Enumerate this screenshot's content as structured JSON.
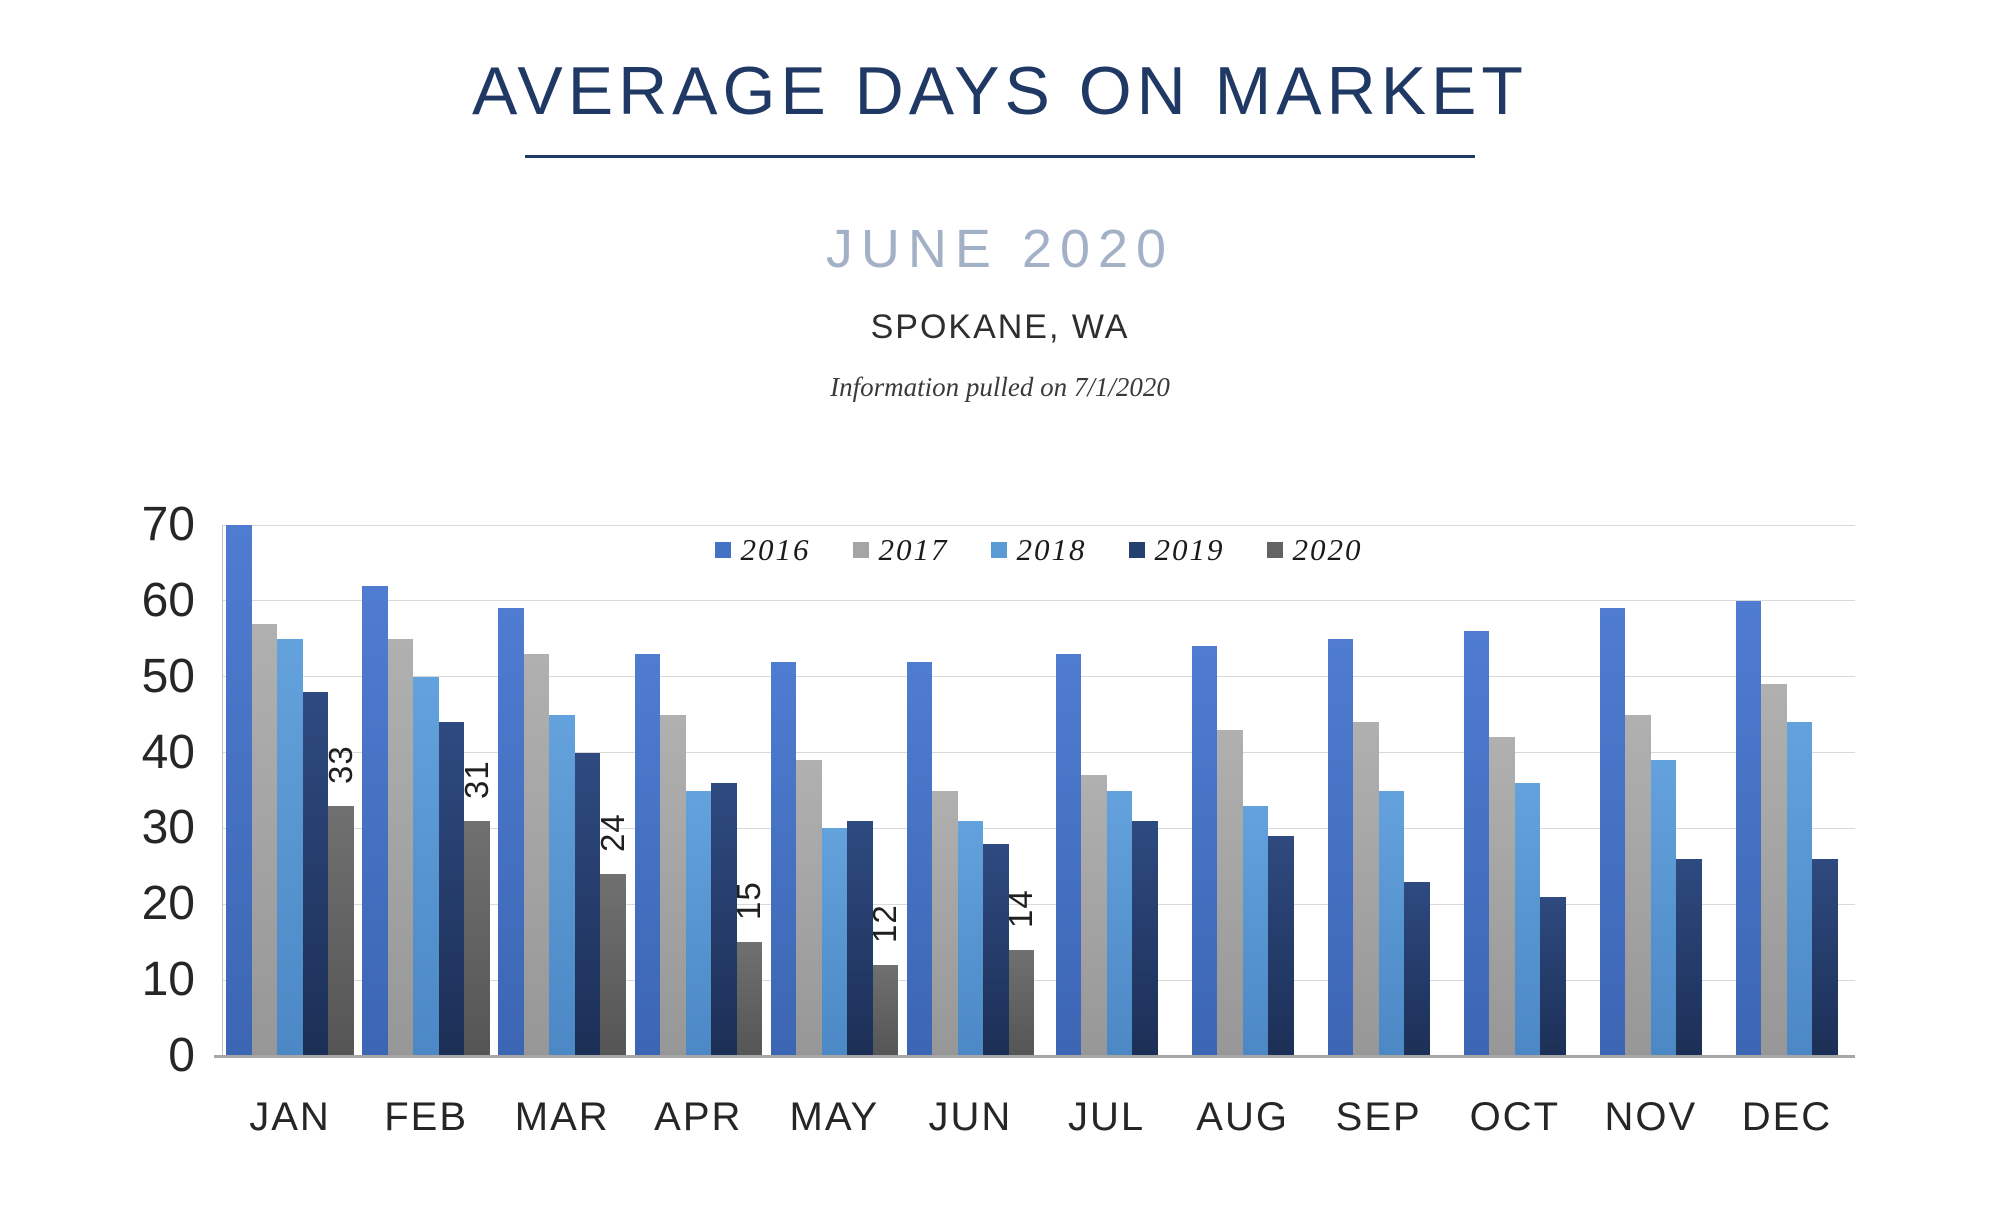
{
  "header": {
    "title": "AVERAGE DAYS ON MARKET",
    "subtitle": "JUNE 2020",
    "location": "SPOKANE, WA",
    "info_note": "Information pulled on 7/1/2020"
  },
  "colors": {
    "title": "#1F3864",
    "title_rule": "#1F3864",
    "subtitle": "#A3B1C7",
    "gridline": "#D9D9D9",
    "axis_line": "#BFBFBF",
    "baseline": "#A6A6A6",
    "axis_text": "#262626"
  },
  "chart_data": {
    "type": "bar",
    "title": "Average days on market by month, Spokane WA",
    "categories": [
      "JAN",
      "FEB",
      "MAR",
      "APR",
      "MAY",
      "JUN",
      "JUL",
      "AUG",
      "SEP",
      "OCT",
      "NOV",
      "DEC"
    ],
    "series": [
      {
        "name": "2016",
        "swatch": "#4472C4",
        "gradient_top": "#4F7CD1",
        "gradient_bottom": "#3C66B4",
        "values": [
          70,
          62,
          59,
          53,
          52,
          52,
          53,
          54,
          55,
          56,
          59,
          60
        ]
      },
      {
        "name": "2017",
        "swatch": "#A5A5A5",
        "gradient_top": "#B0B0B0",
        "gradient_bottom": "#979797",
        "values": [
          57,
          55,
          53,
          45,
          39,
          35,
          37,
          43,
          44,
          42,
          45,
          49
        ]
      },
      {
        "name": "2018",
        "swatch": "#5B9BD5",
        "gradient_top": "#63A2DD",
        "gradient_bottom": "#4B88C5",
        "values": [
          55,
          50,
          45,
          35,
          30,
          31,
          35,
          33,
          35,
          36,
          39,
          44
        ]
      },
      {
        "name": "2019",
        "swatch": "#24406F",
        "gradient_top": "#2E4A80",
        "gradient_bottom": "#1C2F56",
        "values": [
          48,
          44,
          40,
          36,
          31,
          28,
          31,
          29,
          23,
          21,
          26,
          26
        ]
      },
      {
        "name": "2020",
        "swatch": "#636363",
        "gradient_top": "#707070",
        "gradient_bottom": "#555555",
        "values": [
          33,
          31,
          24,
          15,
          12,
          14,
          null,
          null,
          null,
          null,
          null,
          null
        ],
        "data_labels": [
          33,
          31,
          24,
          15,
          12,
          14,
          null,
          null,
          null,
          null,
          null,
          null
        ]
      }
    ],
    "ylabel": "",
    "xlabel": "",
    "ylim": [
      0,
      70
    ],
    "yticks": [
      0,
      10,
      20,
      30,
      40,
      50,
      60,
      70
    ],
    "grid": true,
    "legend_position": "top-center"
  }
}
